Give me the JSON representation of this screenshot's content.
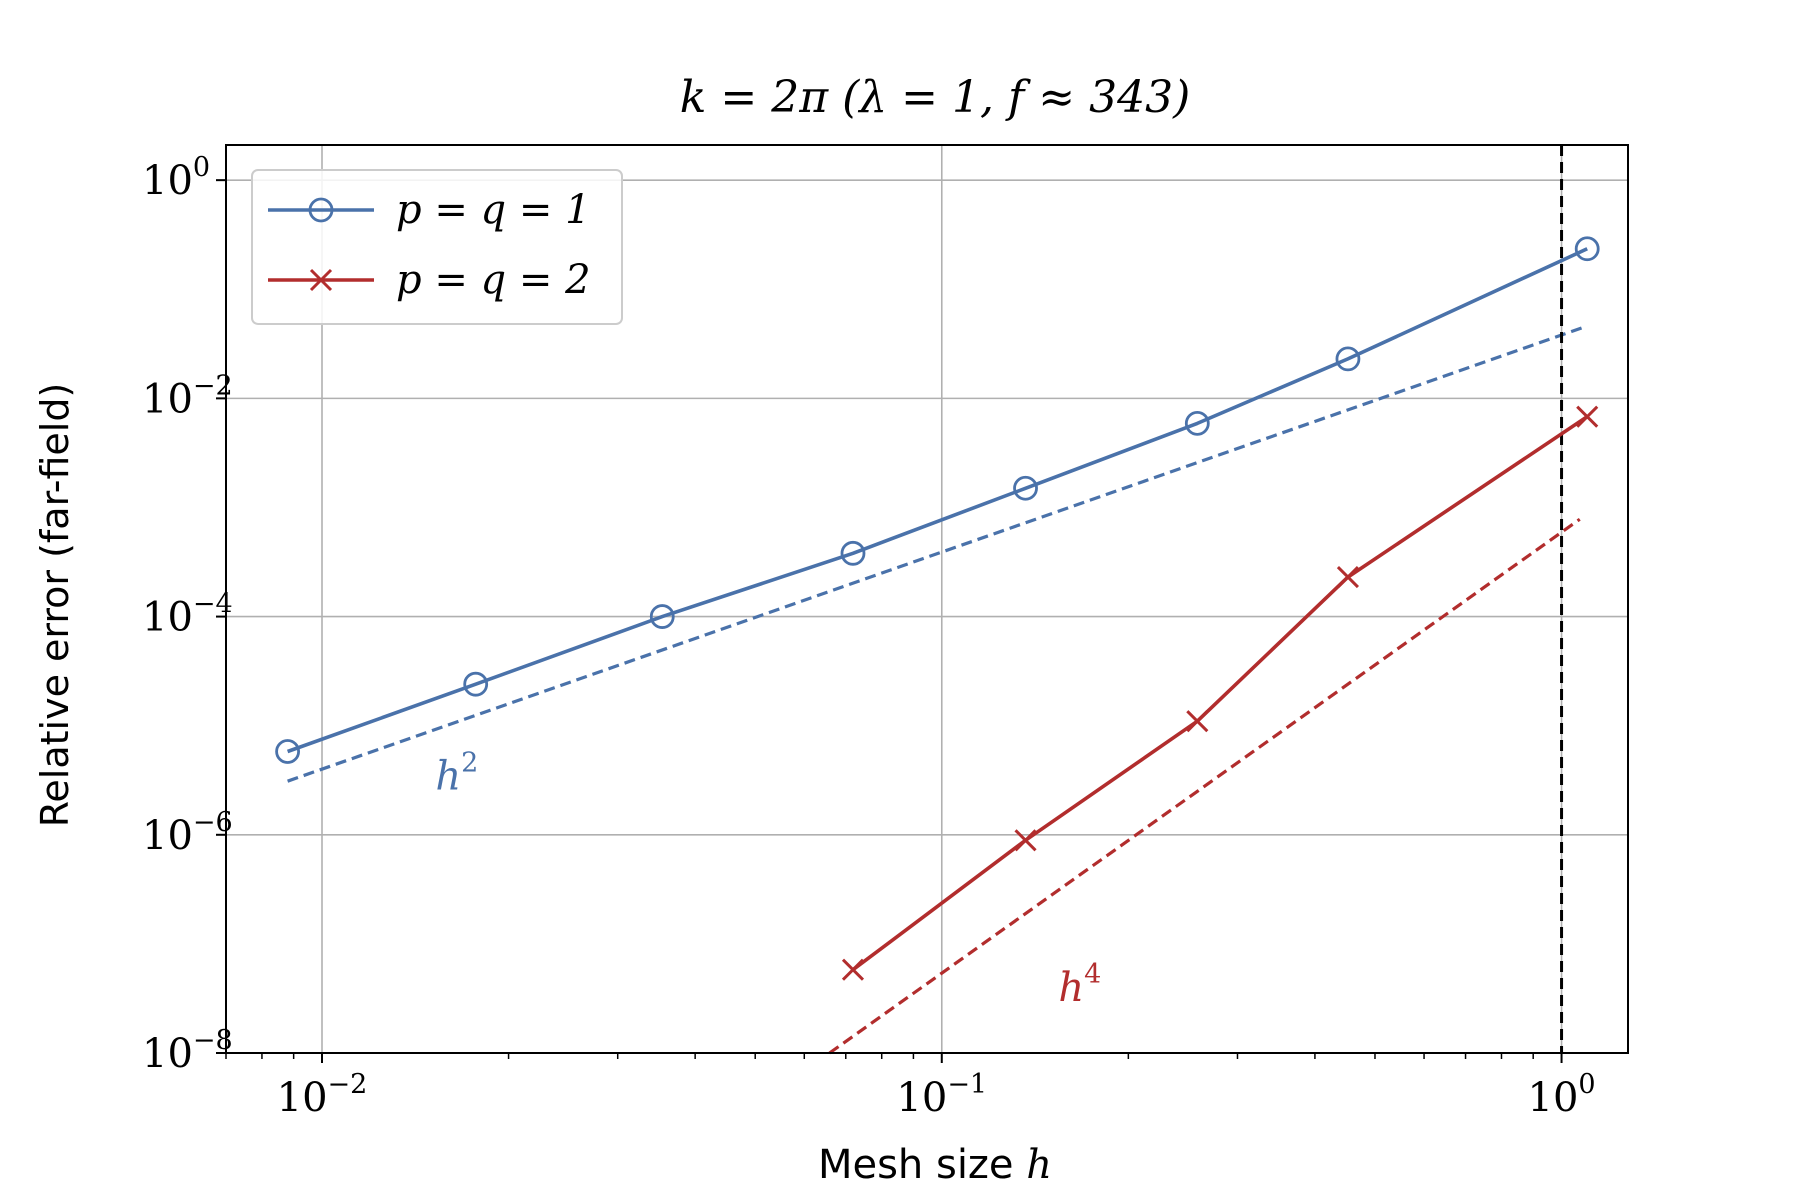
{
  "chart_data": {
    "type": "line",
    "title": "k = 2π (λ = 1, f ≈ 343)",
    "xlabel": "Mesh size ",
    "xlabel_var": "h",
    "ylabel": "Relative error (far-field)",
    "xscale": "log",
    "yscale": "log",
    "xlim": [
      0.007,
      1.28
    ],
    "ylim": [
      1e-08,
      2.1
    ],
    "grid": true,
    "legend_position": "top-left",
    "x_ticks": [
      {
        "value": 0.01,
        "base": "10",
        "exp": "−2"
      },
      {
        "value": 0.1,
        "base": "10",
        "exp": "−1"
      },
      {
        "value": 1,
        "base": "10",
        "exp": "0"
      }
    ],
    "y_ticks": [
      {
        "value": 1e-08,
        "base": "10",
        "exp": "−8"
      },
      {
        "value": 1e-06,
        "base": "10",
        "exp": "−6"
      },
      {
        "value": 0.0001,
        "base": "10",
        "exp": "−4"
      },
      {
        "value": 0.01,
        "base": "10",
        "exp": "−2"
      },
      {
        "value": 1,
        "base": "10",
        "exp": "0"
      }
    ],
    "series": [
      {
        "name": "p = q = 1",
        "color": "#4a72aa",
        "marker": "circle",
        "x": [
          0.0088,
          0.0177,
          0.0354,
          0.0719,
          0.1365,
          0.2584,
          0.4522,
          1.1
        ],
        "y": [
          5.8e-06,
          2.4e-05,
          0.0001,
          0.00038,
          0.0015,
          0.0059,
          0.023,
          0.235
        ]
      },
      {
        "name": "p = q = 2",
        "color": "#b22d2d",
        "marker": "x",
        "x": [
          0.0719,
          0.1365,
          0.2584,
          0.4522,
          1.1
        ],
        "y": [
          5.8e-08,
          8.9e-07,
          1.1e-05,
          0.00023,
          0.0068
        ]
      }
    ],
    "reference_lines": [
      {
        "label_base": "h",
        "label_exp": "2",
        "color": "#4a72aa",
        "x": [
          0.0088,
          1.1
        ],
        "y": [
          3.1e-06,
          0.046
        ],
        "label_x": 0.0165,
        "label_y": 2.6e-06
      },
      {
        "label_base": "h",
        "label_exp": "4",
        "color": "#b22d2d",
        "x": [
          0.0659,
          1.07
        ],
        "y": [
          1e-08,
          0.00078
        ],
        "label_x": 0.167,
        "label_y": 3e-08
      }
    ],
    "vertical_line": {
      "x": 1.0,
      "color": "#000000",
      "style": "dashed"
    }
  }
}
